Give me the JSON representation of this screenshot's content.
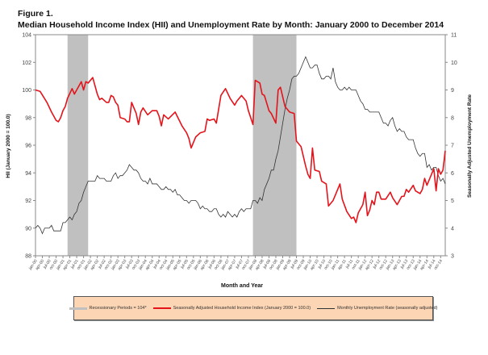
{
  "figure_label": "Figure 1.",
  "title": "Median Household Income Index (HII) and Unemployment Rate by Month: January 2000 to December 2014",
  "chart_data": {
    "type": "line",
    "xlabel": "Month and Year",
    "ylabel_left": "HII (January 2000 = 100.0)",
    "ylabel_right": "Seasonally Adjusted Unemployment Rate",
    "ylim_left": [
      88,
      104
    ],
    "yticks_left": [
      88,
      90,
      92,
      94,
      96,
      98,
      100,
      102,
      104
    ],
    "ylim_right": [
      3,
      11
    ],
    "yticks_right": [
      3,
      4,
      5,
      6,
      7,
      8,
      9,
      10,
      11
    ],
    "grid": false,
    "legend_placement": "bottom",
    "x_tick_labels": [
      "jan-00",
      "apr-00",
      "jul-00",
      "oct-00",
      "jan-01",
      "apr-01",
      "jul-01",
      "oct-01",
      "jan-02",
      "apr-02",
      "jul-02",
      "oct-02",
      "jan-03",
      "apr-03",
      "jul-03",
      "oct-03",
      "jan-04",
      "apr-04",
      "jul-04",
      "oct-04",
      "jan-05",
      "apr-05",
      "jul-05",
      "oct-05",
      "jan-06",
      "apr-06",
      "jul-06",
      "oct-06",
      "jan-07",
      "apr-07",
      "jul-07",
      "oct-07",
      "jan-08",
      "apr-08",
      "jul-08",
      "oct-08",
      "jan-09",
      "apr-09",
      "jul-09",
      "oct-09",
      "jan-10",
      "apr-10",
      "jul-10",
      "oct-10",
      "jan-11",
      "apr-11",
      "jul-11",
      "oct-11",
      "jan-12",
      "apr-12",
      "jul-12",
      "oct-12",
      "jan-13",
      "apr-13",
      "jul-13",
      "oct-13",
      "jan-14",
      "apr-14",
      "jul-14",
      "oct-14"
    ],
    "recessions": [
      {
        "start": "2001-03",
        "end": "2001-11"
      },
      {
        "start": "2007-12",
        "end": "2009-06"
      }
    ],
    "series": [
      {
        "name": "Seasonally Adjusted Household Income Index (January 2000 = 100.0)",
        "axis": "left",
        "color": "#e3141b",
        "points": [
          [
            "2000-01",
            100.0
          ],
          [
            "2000-03",
            99.9
          ],
          [
            "2000-06",
            99.1
          ],
          [
            "2000-08",
            98.4
          ],
          [
            "2000-10",
            97.8
          ],
          [
            "2000-11",
            97.7
          ],
          [
            "2000-12",
            98.0
          ],
          [
            "2001-01",
            98.5
          ],
          [
            "2001-02",
            98.8
          ],
          [
            "2001-03",
            99.4
          ],
          [
            "2001-05",
            100.1
          ],
          [
            "2001-06",
            99.7
          ],
          [
            "2001-09",
            100.6
          ],
          [
            "2001-10",
            100.0
          ],
          [
            "2001-11",
            100.6
          ],
          [
            "2001-12",
            100.5
          ],
          [
            "2002-02",
            100.9
          ],
          [
            "2002-04",
            99.7
          ],
          [
            "2002-05",
            99.3
          ],
          [
            "2002-06",
            99.4
          ],
          [
            "2002-08",
            99.1
          ],
          [
            "2002-09",
            99.1
          ],
          [
            "2002-10",
            99.6
          ],
          [
            "2002-11",
            99.5
          ],
          [
            "2002-12",
            99.1
          ],
          [
            "2003-01",
            98.9
          ],
          [
            "2003-02",
            98.0
          ],
          [
            "2003-04",
            97.9
          ],
          [
            "2003-05",
            97.7
          ],
          [
            "2003-06",
            97.7
          ],
          [
            "2003-07",
            99.1
          ],
          [
            "2003-09",
            98.3
          ],
          [
            "2003-10",
            97.5
          ],
          [
            "2003-11",
            98.4
          ],
          [
            "2003-12",
            98.7
          ],
          [
            "2004-02",
            98.2
          ],
          [
            "2004-04",
            98.5
          ],
          [
            "2004-06",
            98.5
          ],
          [
            "2004-07",
            98.1
          ],
          [
            "2004-08",
            97.4
          ],
          [
            "2004-09",
            98.2
          ],
          [
            "2004-11",
            97.9
          ],
          [
            "2005-02",
            98.4
          ],
          [
            "2005-05",
            97.4
          ],
          [
            "2005-07",
            96.9
          ],
          [
            "2005-08",
            96.5
          ],
          [
            "2005-09",
            95.8
          ],
          [
            "2005-11",
            96.6
          ],
          [
            "2006-01",
            96.9
          ],
          [
            "2006-03",
            97.0
          ],
          [
            "2006-04",
            97.9
          ],
          [
            "2006-05",
            97.8
          ],
          [
            "2006-07",
            97.9
          ],
          [
            "2006-08",
            97.6
          ],
          [
            "2006-10",
            99.6
          ],
          [
            "2006-12",
            100.1
          ],
          [
            "2007-02",
            99.4
          ],
          [
            "2007-04",
            98.9
          ],
          [
            "2007-05",
            99.2
          ],
          [
            "2007-07",
            99.6
          ],
          [
            "2007-09",
            99.2
          ],
          [
            "2007-10",
            98.5
          ],
          [
            "2007-12",
            97.5
          ],
          [
            "2008-01",
            100.7
          ],
          [
            "2008-03",
            100.5
          ],
          [
            "2008-04",
            99.7
          ],
          [
            "2008-05",
            99.6
          ],
          [
            "2008-07",
            98.5
          ],
          [
            "2008-08",
            98.3
          ],
          [
            "2008-10",
            97.6
          ],
          [
            "2008-11",
            100.0
          ],
          [
            "2008-12",
            100.2
          ],
          [
            "2009-02",
            98.8
          ],
          [
            "2009-04",
            98.4
          ],
          [
            "2009-06",
            98.3
          ],
          [
            "2009-07",
            96.3
          ],
          [
            "2009-09",
            95.9
          ],
          [
            "2009-11",
            94.5
          ],
          [
            "2009-12",
            93.9
          ],
          [
            "2010-01",
            93.6
          ],
          [
            "2010-02",
            95.8
          ],
          [
            "2010-03",
            94.2
          ],
          [
            "2010-05",
            94.1
          ],
          [
            "2010-06",
            93.4
          ],
          [
            "2010-08",
            93.2
          ],
          [
            "2010-09",
            91.6
          ],
          [
            "2010-11",
            92.0
          ],
          [
            "2010-12",
            92.4
          ],
          [
            "2011-02",
            93.2
          ],
          [
            "2011-03",
            92.1
          ],
          [
            "2011-05",
            91.2
          ],
          [
            "2011-07",
            90.7
          ],
          [
            "2011-08",
            90.8
          ],
          [
            "2011-09",
            90.4
          ],
          [
            "2011-10",
            91.1
          ],
          [
            "2011-12",
            91.7
          ],
          [
            "2012-01",
            92.6
          ],
          [
            "2012-02",
            90.9
          ],
          [
            "2012-03",
            91.3
          ],
          [
            "2012-04",
            92.0
          ],
          [
            "2012-05",
            91.7
          ],
          [
            "2012-06",
            92.6
          ],
          [
            "2012-07",
            92.6
          ],
          [
            "2012-08",
            92.1
          ],
          [
            "2012-10",
            92.1
          ],
          [
            "2012-12",
            92.6
          ],
          [
            "2013-01",
            92.2
          ],
          [
            "2013-03",
            91.7
          ],
          [
            "2013-05",
            92.3
          ],
          [
            "2013-06",
            92.3
          ],
          [
            "2013-07",
            92.8
          ],
          [
            "2013-08",
            92.6
          ],
          [
            "2013-10",
            93.1
          ],
          [
            "2013-11",
            92.7
          ],
          [
            "2014-01",
            92.5
          ],
          [
            "2014-02",
            92.8
          ],
          [
            "2014-03",
            93.6
          ],
          [
            "2014-04",
            93.1
          ],
          [
            "2014-06",
            93.9
          ],
          [
            "2014-07",
            94.3
          ],
          [
            "2014-08",
            92.7
          ],
          [
            "2014-09",
            94.3
          ],
          [
            "2014-10",
            93.9
          ],
          [
            "2014-11",
            94.2
          ],
          [
            "2014-12",
            95.6
          ]
        ]
      },
      {
        "name": "Monthly Unemployment Rate (seasonally adjusted)",
        "axis": "right",
        "color": "#333333",
        "values_by_year": {
          "2000": [
            4.0,
            4.1,
            4.0,
            3.8,
            4.0,
            4.0,
            4.0,
            4.1,
            3.9,
            3.9,
            3.9,
            3.9
          ],
          "2001": [
            4.2,
            4.2,
            4.3,
            4.4,
            4.3,
            4.5,
            4.6,
            4.9,
            5.0,
            5.3,
            5.5,
            5.7
          ],
          "2002": [
            5.7,
            5.7,
            5.7,
            5.9,
            5.8,
            5.8,
            5.8,
            5.7,
            5.7,
            5.7,
            5.9,
            6.0
          ],
          "2003": [
            5.8,
            5.9,
            5.9,
            6.0,
            6.1,
            6.3,
            6.2,
            6.1,
            6.1,
            6.0,
            5.8,
            5.7
          ],
          "2004": [
            5.7,
            5.6,
            5.8,
            5.6,
            5.6,
            5.6,
            5.5,
            5.4,
            5.4,
            5.5,
            5.4,
            5.4
          ],
          "2005": [
            5.3,
            5.4,
            5.2,
            5.2,
            5.1,
            5.0,
            5.0,
            4.9,
            5.0,
            5.0,
            5.0,
            4.9
          ],
          "2006": [
            4.7,
            4.8,
            4.7,
            4.7,
            4.6,
            4.6,
            4.7,
            4.7,
            4.5,
            4.4,
            4.5,
            4.4
          ],
          "2007": [
            4.6,
            4.5,
            4.4,
            4.5,
            4.4,
            4.6,
            4.7,
            4.6,
            4.7,
            4.7,
            4.7,
            5.0
          ],
          "2008": [
            5.0,
            4.9,
            5.1,
            5.0,
            5.4,
            5.6,
            5.8,
            6.1,
            6.1,
            6.5,
            6.8,
            7.3
          ],
          "2009": [
            7.8,
            8.3,
            8.7,
            9.0,
            9.4,
            9.5,
            9.5,
            9.6,
            9.8,
            10.0,
            10.2,
            10.0
          ],
          "2010": [
            9.8,
            9.8,
            9.9,
            9.9,
            9.6,
            9.4,
            9.4,
            9.5,
            9.5,
            9.4,
            9.8,
            9.3
          ],
          "2011": [
            9.1,
            9.0,
            9.0,
            9.1,
            9.0,
            9.1,
            9.0,
            9.0,
            9.0,
            8.8,
            8.6,
            8.5
          ],
          "2012": [
            8.3,
            8.3,
            8.2,
            8.2,
            8.2,
            8.2,
            8.2,
            8.0,
            7.8,
            7.8,
            7.7,
            7.9
          ],
          "2013": [
            8.0,
            7.7,
            7.5,
            7.6,
            7.5,
            7.5,
            7.3,
            7.2,
            7.2,
            7.2,
            6.9,
            6.7
          ],
          "2014": [
            6.6,
            6.7,
            6.7,
            6.2,
            6.3,
            6.1,
            6.2,
            6.2,
            5.9,
            5.7,
            5.8,
            5.6
          ]
        }
      }
    ],
    "legend": {
      "recession_label": "Recessionary Periods = 104*",
      "recession_color": "#c0c0c0",
      "background": "#fcd5b4"
    }
  }
}
